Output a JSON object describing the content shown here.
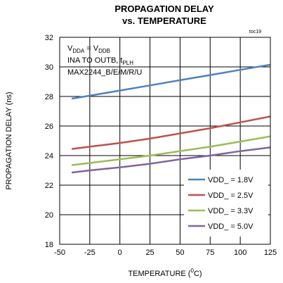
{
  "chart_data": {
    "type": "line",
    "title_line1": "PROPAGATION DELAY",
    "title_line2": "vs. TEMPERATURE",
    "toc": "toc19",
    "xlabel_prefix": "TEMPERATURE (",
    "xlabel_sup": "0",
    "xlabel_suffix": "C)",
    "ylabel": "PROPAGATION DELAY (ns)",
    "xlim": [
      -50,
      125
    ],
    "ylim": [
      18,
      32
    ],
    "xticks": [
      -50,
      -25,
      0,
      25,
      50,
      75,
      100,
      125
    ],
    "yticks": [
      18,
      20,
      22,
      24,
      26,
      28,
      30,
      32
    ],
    "grid": true,
    "legend_position": "bottom-right",
    "annotation": {
      "line1_v1": "V",
      "line1_sub1": "DDA",
      "line1_eq": " = V",
      "line1_sub2": "DDB",
      "line2_main": "INA TO OUTB, t",
      "line2_sub": "PLH",
      "line3": "MAX2244_B/E/M/R/U"
    },
    "series": [
      {
        "name": "VDD_ = 1.8V",
        "color": "#4f81bd",
        "x": [
          -40,
          -25,
          0,
          25,
          50,
          75,
          100,
          125
        ],
        "y": [
          27.85,
          28.05,
          28.4,
          28.75,
          29.1,
          29.45,
          29.8,
          30.15
        ]
      },
      {
        "name": "VDD_ = 2.5V",
        "color": "#c0504d",
        "x": [
          -40,
          -25,
          0,
          25,
          50,
          75,
          100,
          125
        ],
        "y": [
          24.45,
          24.6,
          24.85,
          25.15,
          25.5,
          25.85,
          26.25,
          26.65
        ]
      },
      {
        "name": "VDD_ = 3.3V",
        "color": "#9bbb59",
        "x": [
          -40,
          -25,
          0,
          25,
          50,
          75,
          100,
          125
        ],
        "y": [
          23.35,
          23.5,
          23.75,
          24.0,
          24.3,
          24.6,
          24.95,
          25.3
        ]
      },
      {
        "name": "VDD_ = 5.0V",
        "color": "#8064a2",
        "x": [
          -40,
          -25,
          0,
          25,
          50,
          75,
          100,
          125
        ],
        "y": [
          22.85,
          23.0,
          23.2,
          23.45,
          23.75,
          24.0,
          24.3,
          24.55
        ]
      }
    ]
  }
}
